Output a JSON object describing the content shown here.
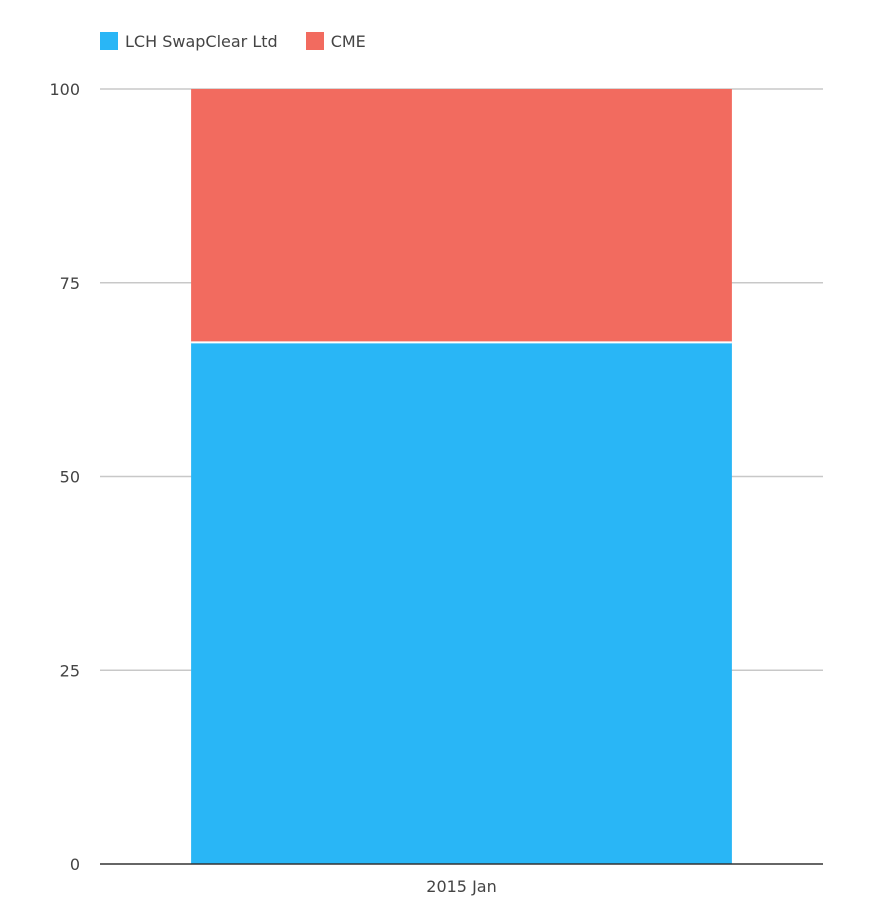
{
  "chart_data": {
    "type": "bar",
    "stacked": true,
    "categories": [
      "2015 Jan"
    ],
    "series": [
      {
        "name": "LCH SwapClear Ltd",
        "values": [
          67.3
        ],
        "color": "#29b6f6"
      },
      {
        "name": "CME",
        "values": [
          32.7
        ],
        "color": "#f26b5f"
      }
    ],
    "ylim": [
      0,
      100
    ],
    "yticks": [
      0,
      25,
      50,
      75,
      100
    ],
    "grid": true,
    "legend_position": "top-left",
    "title": "",
    "xlabel": "",
    "ylabel": ""
  }
}
